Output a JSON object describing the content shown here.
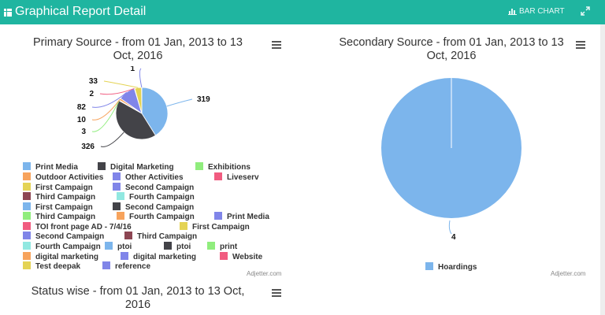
{
  "header": {
    "title": "Graphical Report Detail",
    "bar_chart_label": "BAR CHART"
  },
  "primary": {
    "title_line1": "Primary Source - from 01 Jan, 2013 to 13",
    "title_line2": "Oct, 2016",
    "credits": "Adjetter.com",
    "legend": [
      {
        "label": "Print Media",
        "color": "#7cb5ec"
      },
      {
        "label": "Digital Marketing",
        "color": "#434348"
      },
      {
        "label": "Exhibitions",
        "color": "#90ed7d"
      },
      {
        "label": "Outdoor Activities",
        "color": "#f7a35c"
      },
      {
        "label": "Other Activities",
        "color": "#8085e9"
      },
      {
        "label": "Liveserv",
        "color": "#f15c80"
      },
      {
        "label": "First Campaign",
        "color": "#e4d354"
      },
      {
        "label": "Second Campaign",
        "color": "#8085e8"
      },
      {
        "label": "Third Campaign",
        "color": "#8d4653"
      },
      {
        "label": "Fourth Campaign",
        "color": "#91e8e1"
      },
      {
        "label": "First Campaign",
        "color": "#7cb5ec"
      },
      {
        "label": "Second Campaign",
        "color": "#434348"
      },
      {
        "label": "Third Campaign",
        "color": "#90ed7d"
      },
      {
        "label": "Fourth Campaign",
        "color": "#f7a35c"
      },
      {
        "label": "Print Media",
        "color": "#8085e9"
      },
      {
        "label": "TOI front page AD - 7/4/16",
        "color": "#f15c80"
      },
      {
        "label": "First Campaign",
        "color": "#e4d354"
      },
      {
        "label": "Second Campaign",
        "color": "#8085e8"
      },
      {
        "label": "Third Campaign",
        "color": "#8d4653"
      },
      {
        "label": "Fourth Campaign",
        "color": "#91e8e1"
      },
      {
        "label": "ptoi",
        "color": "#7cb5ec"
      },
      {
        "label": "ptoi",
        "color": "#434348"
      },
      {
        "label": "print",
        "color": "#90ed7d"
      },
      {
        "label": "digital marketing",
        "color": "#f7a35c"
      },
      {
        "label": "digital marketing",
        "color": "#8085e9"
      },
      {
        "label": "Website",
        "color": "#f15c80"
      },
      {
        "label": "Test deepak",
        "color": "#e4d354"
      },
      {
        "label": "reference",
        "color": "#8085e8"
      }
    ]
  },
  "secondary": {
    "title_line1": "Secondary Source - from 01 Jan, 2013 to 13",
    "title_line2": "Oct, 2016",
    "credits": "Adjetter.com",
    "legend": [
      {
        "label": "Hoardings",
        "color": "#7cb5ec"
      }
    ]
  },
  "status": {
    "title_line1": "Status wise - from 01 Jan, 2013 to 13 Oct,",
    "title_line2": "2016"
  },
  "chart_data": [
    {
      "type": "pie",
      "title": "Primary Source - from 01 Jan, 2013 to 13 Oct, 2016",
      "categories": [
        "Print Media",
        "Digital Marketing",
        "Exhibitions",
        "Outdoor Activities",
        "Other Activities",
        "Liveserv",
        "First Campaign",
        "Second Campaign"
      ],
      "values": [
        319,
        326,
        3,
        10,
        82,
        2,
        33,
        1
      ],
      "colors": [
        "#7cb5ec",
        "#434348",
        "#90ed7d",
        "#f7a35c",
        "#8085e9",
        "#f15c80",
        "#e4d354",
        "#8085e8"
      ]
    },
    {
      "type": "pie",
      "title": "Secondary Source - from 01 Jan, 2013 to 13 Oct, 2016",
      "categories": [
        "Hoardings"
      ],
      "values": [
        4
      ],
      "colors": [
        "#7cb5ec"
      ]
    }
  ]
}
